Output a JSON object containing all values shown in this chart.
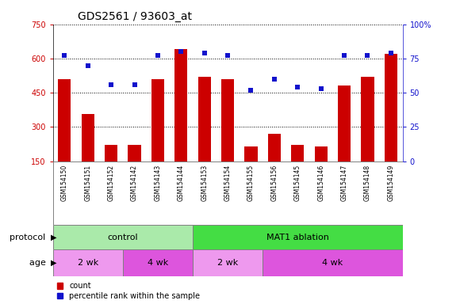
{
  "title": "GDS2561 / 93603_at",
  "samples": [
    "GSM154150",
    "GSM154151",
    "GSM154152",
    "GSM154142",
    "GSM154143",
    "GSM154144",
    "GSM154153",
    "GSM154154",
    "GSM154155",
    "GSM154156",
    "GSM154145",
    "GSM154146",
    "GSM154147",
    "GSM154148",
    "GSM154149"
  ],
  "counts": [
    510,
    355,
    220,
    220,
    510,
    640,
    520,
    510,
    215,
    270,
    220,
    215,
    480,
    520,
    620
  ],
  "percentiles": [
    77,
    70,
    56,
    56,
    77,
    80,
    79,
    77,
    52,
    60,
    54,
    53,
    77,
    77,
    79
  ],
  "ylim_left": [
    150,
    750
  ],
  "ylim_right": [
    0,
    100
  ],
  "yticks_left": [
    150,
    300,
    450,
    600,
    750
  ],
  "yticks_right": [
    0,
    25,
    50,
    75,
    100
  ],
  "ytick_labels_right": [
    "0",
    "25",
    "50",
    "75",
    "100%"
  ],
  "bar_color": "#cc0000",
  "dot_color": "#1111cc",
  "protocol_groups": [
    {
      "label": "control",
      "start": 0,
      "end": 6,
      "color": "#aaeaaa"
    },
    {
      "label": "MAT1 ablation",
      "start": 6,
      "end": 15,
      "color": "#44dd44"
    }
  ],
  "age_groups": [
    {
      "label": "2 wk",
      "start": 0,
      "end": 3,
      "color": "#ee99ee"
    },
    {
      "label": "4 wk",
      "start": 3,
      "end": 6,
      "color": "#dd55dd"
    },
    {
      "label": "2 wk",
      "start": 6,
      "end": 9,
      "color": "#ee99ee"
    },
    {
      "label": "4 wk",
      "start": 9,
      "end": 15,
      "color": "#dd55dd"
    }
  ],
  "protocol_label": "protocol",
  "age_label": "age",
  "legend_count_label": "count",
  "legend_pct_label": "percentile rank within the sample",
  "sample_bg": "#c8c8c8",
  "title_fontsize": 10,
  "tick_fontsize": 7,
  "annot_fontsize": 8,
  "sample_fontsize": 5.5
}
